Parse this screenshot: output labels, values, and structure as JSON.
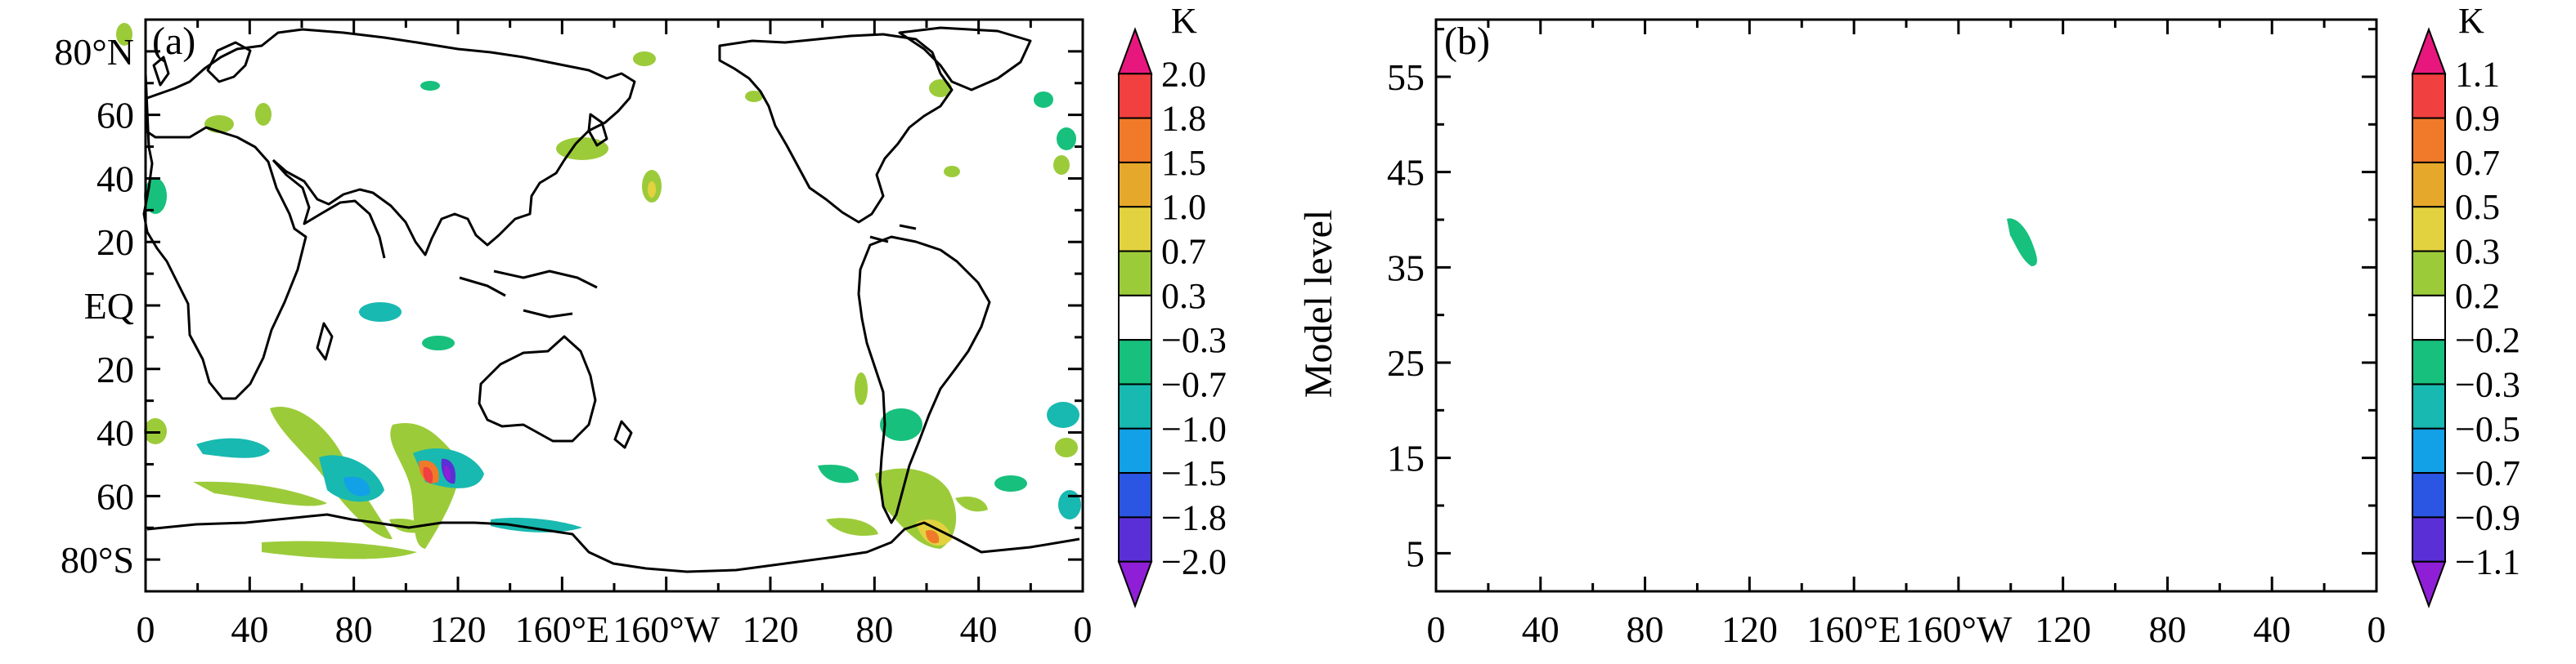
{
  "chart_data": [
    {
      "type": "heatmap",
      "panel_label": "(a)",
      "projection": "global map, longitude x latitude, Pacific-centered",
      "title": "",
      "xlabel": "",
      "ylabel": "",
      "x_tick_labels": [
        "0",
        "40",
        "80",
        "120",
        "160°E",
        "160°W",
        "120",
        "80",
        "40",
        "0"
      ],
      "x_tick_values_deg_east": [
        0,
        40,
        80,
        120,
        160,
        200,
        240,
        280,
        320,
        360
      ],
      "y_tick_labels": [
        "80°N",
        "60",
        "40",
        "20",
        "EQ",
        "20",
        "40",
        "60",
        "80°S"
      ],
      "y_tick_values_deg": [
        80,
        60,
        40,
        20,
        0,
        -20,
        -40,
        -60,
        -80
      ],
      "xlim": [
        0,
        360
      ],
      "ylim": [
        -90,
        90
      ],
      "colorbar": {
        "unit": "K",
        "levels": [
          "2.0",
          "1.8",
          "1.5",
          "1.0",
          "0.7",
          "0.3",
          "−0.3",
          "−0.7",
          "−1.0",
          "−1.5",
          "−1.8",
          "−2.0"
        ],
        "colors": [
          "#e8177d",
          "#f14040",
          "#f07a2a",
          "#e6a82b",
          "#e3d23f",
          "#9ccb3a",
          "#ffffff",
          "#17c07c",
          "#18b9b0",
          "#12a0e6",
          "#2b56e3",
          "#5a2fd6",
          "#8f1fd6"
        ],
        "extend": "both"
      },
      "features": [
        {
          "region": "Southern Ocean south of Indian Ocean",
          "lon": 110,
          "lat": -52,
          "value_range": "-2.0 to 1.8"
        },
        {
          "region": "Southern Ocean, south Atlantic/ Indian",
          "lon": 70,
          "lat": -55,
          "value_range": "0.3 to 0.7 and -0.3 to -1.0"
        },
        {
          "region": "Southern South America / Drake Passage",
          "lon": 300,
          "lat": -55,
          "value_range": "0.3 to 1.0"
        },
        {
          "region": "Northern mid-latitudes scattered",
          "lon": 150,
          "lat": 55,
          "value_range": "0.3 to 0.7"
        }
      ]
    },
    {
      "type": "heatmap",
      "panel_label": "(b)",
      "title": "",
      "xlabel": "",
      "ylabel": "Model level",
      "x_tick_labels": [
        "0",
        "40",
        "80",
        "120",
        "160°E",
        "160°W",
        "120",
        "80",
        "40",
        "0"
      ],
      "x_tick_values_deg_east": [
        0,
        40,
        80,
        120,
        160,
        200,
        240,
        280,
        320,
        360
      ],
      "y_tick_labels": [
        "55",
        "45",
        "35",
        "25",
        "15",
        "5"
      ],
      "y_tick_values": [
        55,
        45,
        35,
        25,
        15,
        5
      ],
      "xlim": [
        0,
        360
      ],
      "ylim": [
        1,
        61
      ],
      "colorbar": {
        "unit": "K",
        "levels": [
          "1.1",
          "0.9",
          "0.7",
          "0.5",
          "0.3",
          "0.2",
          "−0.2",
          "−0.3",
          "−0.5",
          "−0.7",
          "−0.9",
          "−1.1"
        ],
        "colors": [
          "#e8177d",
          "#f14040",
          "#f07a2a",
          "#e6a82b",
          "#e3d23f",
          "#9ccb3a",
          "#ffffff",
          "#17c07c",
          "#18b9b0",
          "#12a0e6",
          "#2b56e3",
          "#5a2fd6",
          "#8f1fd6"
        ],
        "extend": "both"
      },
      "features": [
        {
          "region": "single small negative patch",
          "lon": 230,
          "level": 37,
          "value_range": "-0.2 to -0.3"
        }
      ]
    }
  ]
}
